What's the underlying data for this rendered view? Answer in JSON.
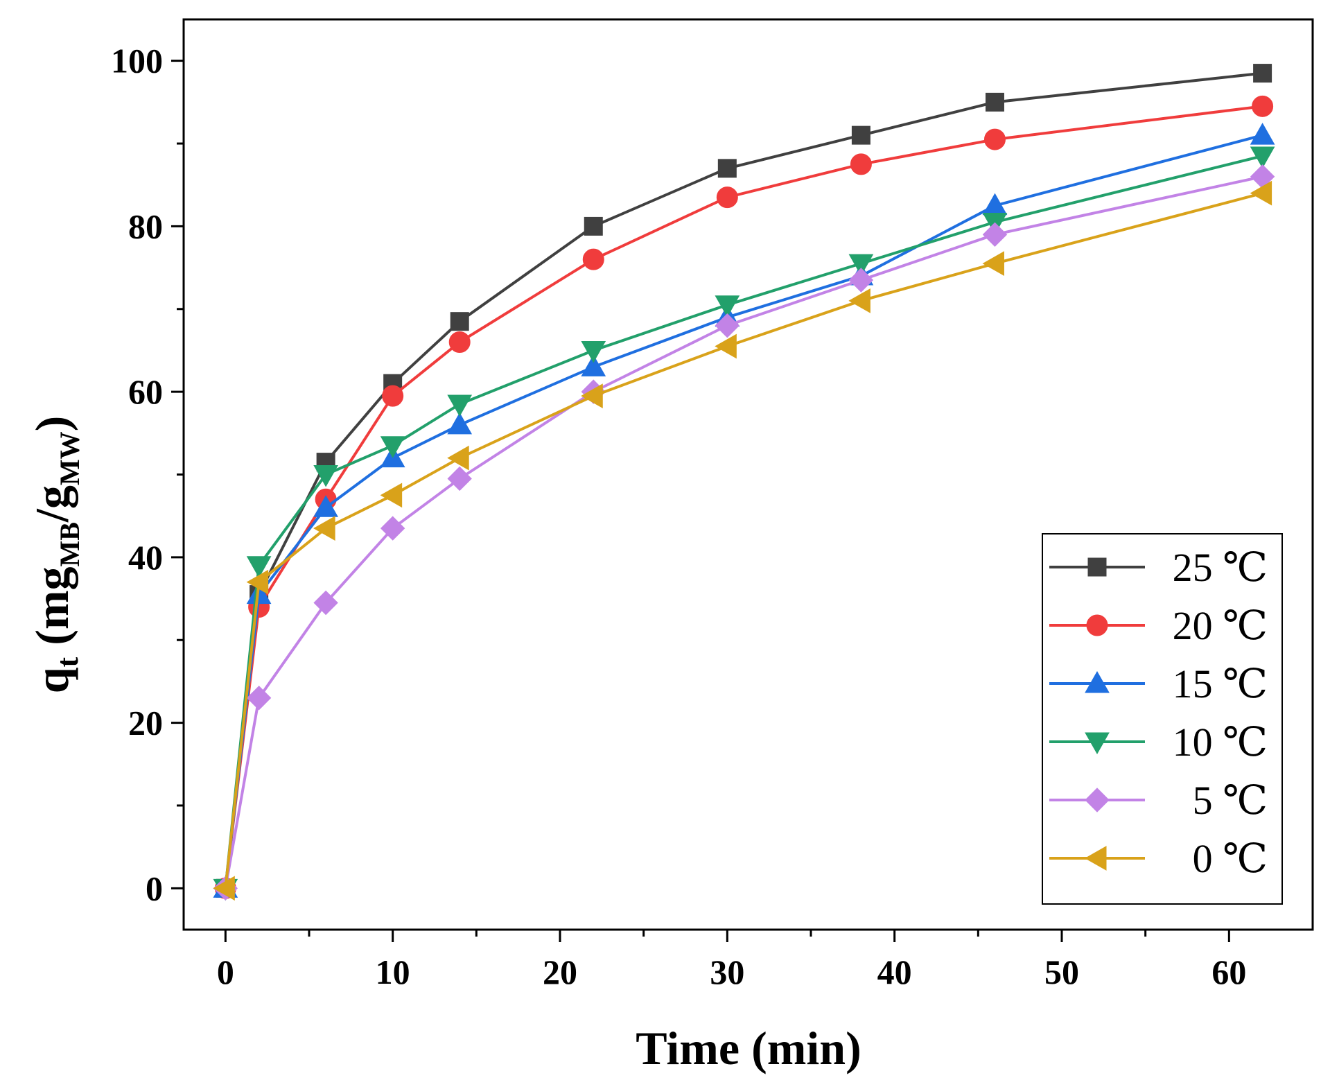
{
  "chart_data": {
    "type": "line",
    "title": "",
    "xlabel": "Time (min)",
    "ylabel": {
      "main": "q",
      "main_sub": "t",
      "open": " (mg",
      "sub1": "MB",
      "slash": "/g",
      "sub2": "MW",
      "close": ")"
    },
    "xlim": [
      -2.5,
      65
    ],
    "ylim": [
      -5,
      105
    ],
    "xticks": [
      0,
      10,
      20,
      30,
      40,
      50,
      60
    ],
    "yticks": [
      0,
      20,
      40,
      60,
      80,
      100
    ],
    "x": [
      0,
      2,
      6,
      10,
      14,
      22,
      30,
      38,
      46,
      62
    ],
    "legend_position": "bottom-right",
    "series": [
      {
        "name": "25 ℃",
        "color": "#404040",
        "marker": "square",
        "values": [
          0,
          35.5,
          51.5,
          61,
          68.5,
          80,
          87,
          91,
          95,
          98.5
        ]
      },
      {
        "name": "20 ℃",
        "color": "#f03c3c",
        "marker": "circle",
        "values": [
          0,
          34,
          47,
          59.5,
          66,
          76,
          83.5,
          87.5,
          90.5,
          94.5
        ]
      },
      {
        "name": "15 ℃",
        "color": "#1f6fe0",
        "marker": "triangle-up",
        "values": [
          0,
          35.5,
          46,
          52,
          56,
          63,
          69,
          74,
          82.5,
          91
        ]
      },
      {
        "name": "10 ℃",
        "color": "#22a06b",
        "marker": "triangle-down",
        "values": [
          0,
          39,
          50,
          53.5,
          58.5,
          65,
          70.5,
          75.5,
          80.5,
          88.5
        ]
      },
      {
        "name": "5 ℃",
        "color": "#c283e6",
        "marker": "diamond",
        "values": [
          0,
          23,
          34.5,
          43.5,
          49.5,
          60,
          68,
          73.5,
          79,
          86
        ]
      },
      {
        "name": "0 ℃",
        "color": "#d9a21a",
        "marker": "triangle-left",
        "values": [
          0,
          37,
          43.5,
          47.5,
          52,
          59.5,
          65.5,
          71,
          75.5,
          84
        ]
      }
    ]
  }
}
